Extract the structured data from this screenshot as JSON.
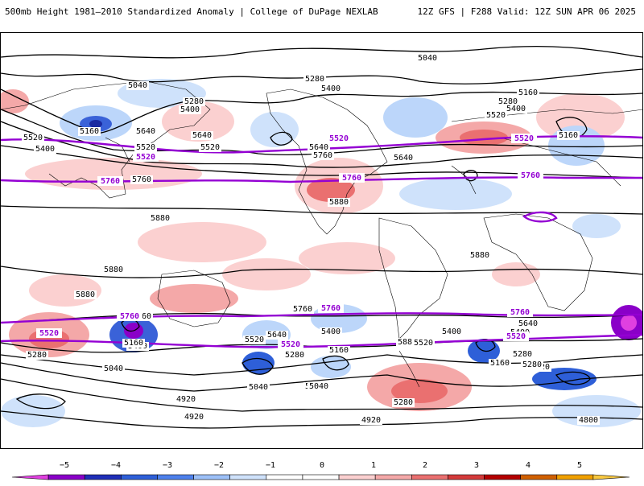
{
  "header": {
    "title_left": "500mb Height 1981–2010 Standardized Anomaly | College of DuPage NEXLAB",
    "title_right": "12Z GFS | F288 Valid: 12Z SUN APR 06 2025"
  },
  "map": {
    "contour_labels_black": [
      "5040",
      "5160",
      "5280",
      "5400",
      "5040",
      "5160",
      "5280",
      "5400",
      "5640",
      "5160",
      "5280",
      "5400",
      "5520",
      "5640",
      "5520",
      "5400",
      "5520",
      "5640",
      "5760",
      "5520",
      "5640",
      "5760",
      "5880",
      "5880",
      "5880",
      "5880",
      "5880",
      "5760",
      "5640",
      "5400",
      "5520",
      "5640",
      "5760",
      "5280",
      "5160",
      "5880",
      "5400",
      "5040",
      "5520",
      "5280",
      "5160",
      "5400",
      "5040",
      "5520",
      "5640",
      "5400",
      "5160",
      "5280",
      "5040",
      "4920",
      "5520",
      "5280",
      "4920",
      "4920",
      "4800",
      "5160",
      "5280"
    ],
    "contour_labels_purple": [
      "5520",
      "5520",
      "5520",
      "5760",
      "5760",
      "5760",
      "5760",
      "5760",
      "5760",
      "5520",
      "5520",
      "5520"
    ],
    "colors": {
      "contour_black": "#000000",
      "contour_purple": "#9400d3",
      "coast": "#000000"
    }
  },
  "colorbar": {
    "ticks": [
      "−5",
      "−4",
      "−3",
      "−2",
      "−1",
      "0",
      "1",
      "2",
      "3",
      "4",
      "5"
    ],
    "segment_colors": [
      "#e040e0",
      "#8a00c8",
      "#1f2fb8",
      "#2e5fd8",
      "#4d80ec",
      "#9cc0f8",
      "#cfe2fb",
      "#ffffff",
      "#ffffff",
      "#fbd0d0",
      "#f4a8a8",
      "#ea7070",
      "#d43a3a",
      "#b40000",
      "#d06000",
      "#f0a000",
      "#f8c840"
    ]
  }
}
